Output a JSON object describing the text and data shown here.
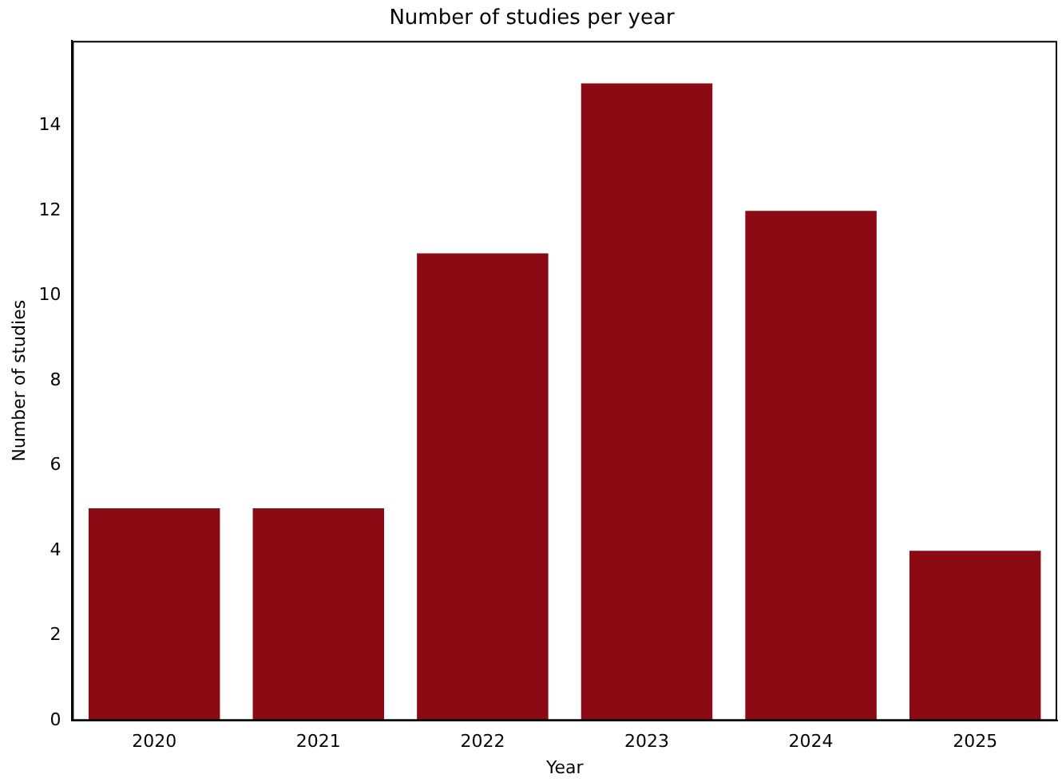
{
  "chart_data": {
    "type": "bar",
    "title": "Number of studies per year",
    "xlabel": "Year",
    "ylabel": "Number of studies",
    "categories": [
      "2020",
      "2021",
      "2022",
      "2023",
      "2024",
      "2025"
    ],
    "values": [
      5,
      5,
      11,
      15,
      12,
      4
    ],
    "color": "#8b0a14",
    "ylim": [
      0,
      16
    ],
    "yticks": [
      0,
      2,
      4,
      6,
      8,
      10,
      12,
      14
    ],
    "grid": false,
    "legend": false
  }
}
